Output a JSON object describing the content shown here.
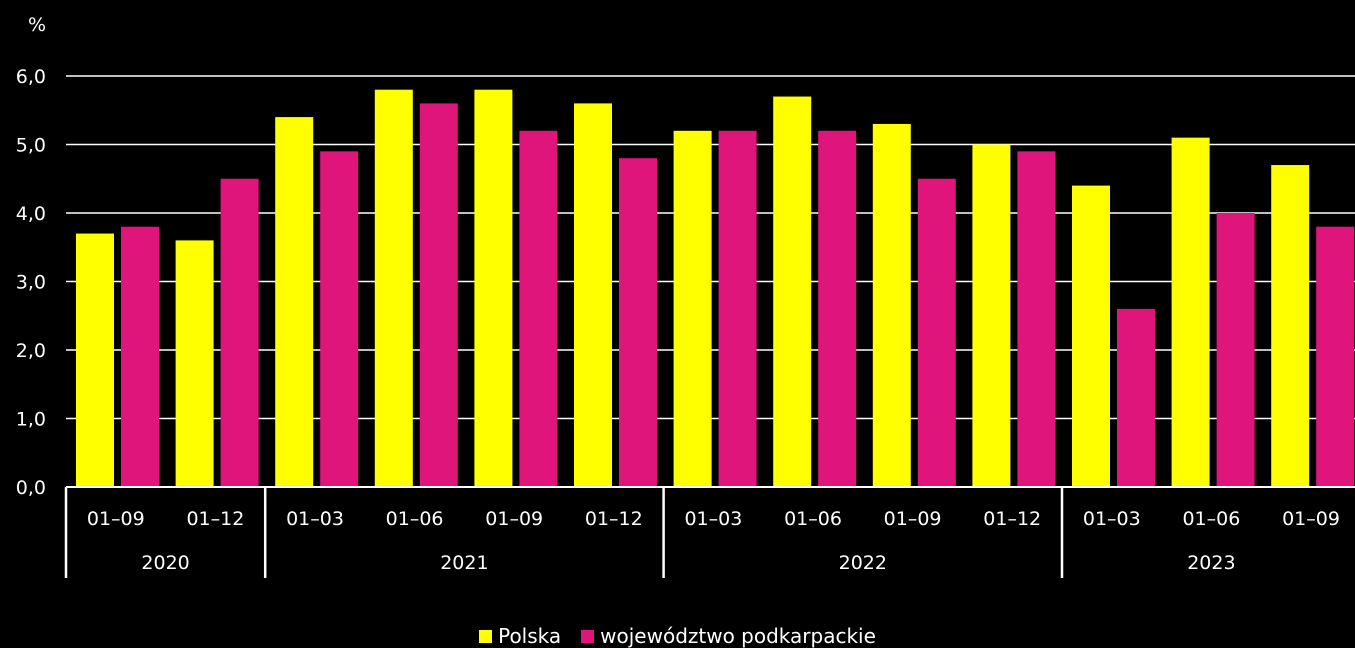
{
  "chart_data": {
    "type": "bar",
    "ylabel": "%",
    "ylim": [
      0,
      6
    ],
    "yticks": [
      "0,0",
      "1,0",
      "2,0",
      "3,0",
      "4,0",
      "5,0",
      "6,0"
    ],
    "grid": true,
    "categories": [
      "01–09",
      "01–12",
      "01–03",
      "01–06",
      "01–09",
      "01–12",
      "01–03",
      "01–06",
      "01–09",
      "01–12",
      "01–03",
      "01–06",
      "01–09"
    ],
    "years": [
      {
        "label": "2020",
        "count": 2
      },
      {
        "label": "2021",
        "count": 4
      },
      {
        "label": "2022",
        "count": 4
      },
      {
        "label": "2023",
        "count": 3
      }
    ],
    "series": [
      {
        "name": "Polska",
        "color": "#ffff00",
        "values": [
          3.7,
          3.6,
          5.4,
          5.8,
          5.8,
          5.6,
          5.2,
          5.7,
          5.3,
          5.0,
          4.4,
          5.1,
          4.7
        ]
      },
      {
        "name": "województwo podkarpackie",
        "color": "#e0157c",
        "values": [
          3.8,
          4.5,
          4.9,
          5.6,
          5.2,
          4.8,
          5.2,
          5.2,
          4.5,
          4.9,
          2.6,
          4.0,
          3.8
        ]
      }
    ],
    "legend_position": "bottom"
  }
}
